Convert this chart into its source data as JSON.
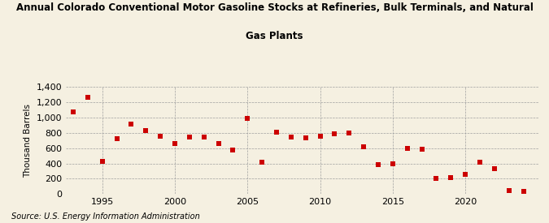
{
  "title_line1": "Annual Colorado Conventional Motor Gasoline Stocks at Refineries, Bulk Terminals, and Natural",
  "title_line2": "Gas Plants",
  "ylabel": "Thousand Barrels",
  "source": "Source: U.S. Energy Information Administration",
  "background_color": "#f5f0e1",
  "plot_background_color": "#f5f0e1",
  "marker_color": "#cc0000",
  "marker": "s",
  "marker_size": 4,
  "xlim": [
    1992.5,
    2025
  ],
  "ylim": [
    0,
    1400
  ],
  "yticks": [
    0,
    200,
    400,
    600,
    800,
    1000,
    1200,
    1400
  ],
  "xticks": [
    1995,
    2000,
    2005,
    2010,
    2015,
    2020
  ],
  "years": [
    1993,
    1994,
    1995,
    1996,
    1997,
    1998,
    1999,
    2000,
    2001,
    2002,
    2003,
    2004,
    2005,
    2006,
    2007,
    2008,
    2009,
    2010,
    2011,
    2012,
    2013,
    2014,
    2015,
    2016,
    2017,
    2018,
    2019,
    2020,
    2021,
    2022,
    2023,
    2024
  ],
  "values": [
    1070,
    1260,
    430,
    720,
    920,
    830,
    760,
    660,
    750,
    740,
    660,
    580,
    990,
    420,
    810,
    740,
    730,
    760,
    790,
    800,
    620,
    380,
    390,
    600,
    590,
    200,
    210,
    260,
    420,
    330,
    50,
    30
  ]
}
